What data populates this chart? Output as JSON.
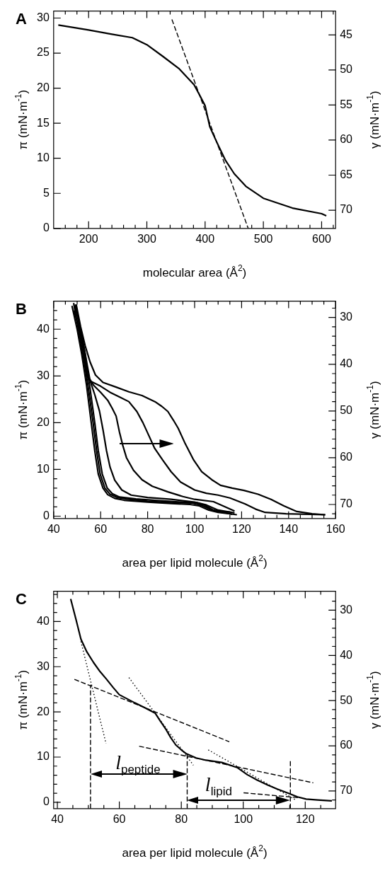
{
  "chart_data": [
    {
      "type": "line",
      "title": "A",
      "xlabel": "molecular area (Å$^{2}$)",
      "ylabel": "π (mN·m$^{-1}$)",
      "y2label": "γ (mN·m$^{-1}$)",
      "xlim": [
        140,
        624
      ],
      "ylim": [
        0,
        31
      ],
      "y2lim": [
        72.6,
        41.6
      ],
      "xticks": [
        {
          "value": 160,
          "label": null
        },
        {
          "value": 180,
          "label": null
        },
        200,
        {
          "value": 220,
          "label": null
        },
        {
          "value": 240,
          "label": null
        },
        {
          "value": 260,
          "label": null
        },
        {
          "value": 280,
          "label": null
        },
        300,
        {
          "value": 320,
          "label": null
        },
        {
          "value": 340,
          "label": null
        },
        {
          "value": 360,
          "label": null
        },
        {
          "value": 380,
          "label": null
        },
        400,
        {
          "value": 420,
          "label": null
        },
        {
          "value": 440,
          "label": null
        },
        {
          "value": 460,
          "label": null
        },
        {
          "value": 480,
          "label": null
        },
        500,
        {
          "value": 520,
          "label": null
        },
        {
          "value": 540,
          "label": null
        },
        {
          "value": 560,
          "label": null
        },
        {
          "value": 580,
          "label": null
        },
        600,
        {
          "value": 620,
          "label": null
        }
      ],
      "yticks": [
        0,
        5,
        10,
        15,
        20,
        25,
        30
      ],
      "y2ticks": [
        45,
        50,
        55,
        60,
        65,
        70
      ],
      "series": [
        {
          "color": "#000000",
          "line_style": "solid",
          "x": [
            148,
            200,
            240,
            275,
            300,
            328,
            355,
            381,
            390,
            400,
            408,
            420,
            435,
            450,
            470,
            500,
            550,
            600,
            608
          ],
          "values": [
            29.0,
            28.3,
            27.7,
            27.2,
            26.2,
            24.5,
            22.8,
            20.5,
            19.1,
            17.5,
            14.5,
            12.3,
            9.7,
            7.8,
            6.0,
            4.3,
            2.9,
            2.1,
            1.8
          ]
        },
        {
          "color": "#000000",
          "line_style": "dashed",
          "x": [
            343,
            474
          ],
          "values": [
            29.8,
            0
          ]
        }
      ]
    },
    {
      "type": "line",
      "title": "B",
      "xlabel": "area per lipid molecule (Å$^{2}$)",
      "ylabel": "π (mN·m$^{-1}$)",
      "y2label": "γ (mN·m$^{-1}$)",
      "xlim": [
        40,
        160
      ],
      "ylim": [
        -0.5,
        46
      ],
      "y2lim": [
        73,
        26.5
      ],
      "xticks": [
        40,
        {
          "value": 45,
          "label": null
        },
        {
          "value": 50,
          "label": null
        },
        {
          "value": 55,
          "label": null
        },
        60,
        {
          "value": 65,
          "label": null
        },
        {
          "value": 70,
          "label": null
        },
        {
          "value": 75,
          "label": null
        },
        80,
        {
          "value": 85,
          "label": null
        },
        {
          "value": 90,
          "label": null
        },
        {
          "value": 95,
          "label": null
        },
        100,
        {
          "value": 105,
          "label": null
        },
        {
          "value": 110,
          "label": null
        },
        {
          "value": 115,
          "label": null
        },
        120,
        {
          "value": 125,
          "label": null
        },
        {
          "value": 130,
          "label": null
        },
        {
          "value": 135,
          "label": null
        },
        140,
        {
          "value": 145,
          "label": null
        },
        {
          "value": 150,
          "label": null
        },
        {
          "value": 155,
          "label": null
        },
        160
      ],
      "yticks": [
        0,
        {
          "value": 2,
          "label": null
        },
        {
          "value": 4,
          "label": null
        },
        {
          "value": 6,
          "label": null
        },
        {
          "value": 8,
          "label": null
        },
        10,
        {
          "value": 12,
          "label": null
        },
        {
          "value": 14,
          "label": null
        },
        {
          "value": 16,
          "label": null
        },
        {
          "value": 18,
          "label": null
        },
        20,
        {
          "value": 22,
          "label": null
        },
        {
          "value": 24,
          "label": null
        },
        {
          "value": 26,
          "label": null
        },
        {
          "value": 28,
          "label": null
        },
        30,
        {
          "value": 32,
          "label": null
        },
        {
          "value": 34,
          "label": null
        },
        {
          "value": 36,
          "label": null
        },
        {
          "value": 38,
          "label": null
        },
        40,
        {
          "value": 42,
          "label": null
        },
        {
          "value": 44,
          "label": null
        }
      ],
      "y2ticks": [
        {
          "value": 28,
          "label": null
        },
        30,
        {
          "value": 32,
          "label": null
        },
        {
          "value": 34,
          "label": null
        },
        {
          "value": 36,
          "label": null
        },
        {
          "value": 38,
          "label": null
        },
        40,
        {
          "value": 42,
          "label": null
        },
        {
          "value": 44,
          "label": null
        },
        {
          "value": 46,
          "label": null
        },
        {
          "value": 48,
          "label": null
        },
        50,
        {
          "value": 52,
          "label": null
        },
        {
          "value": 54,
          "label": null
        },
        {
          "value": 56,
          "label": null
        },
        {
          "value": 58,
          "label": null
        },
        60,
        {
          "value": 62,
          "label": null
        },
        {
          "value": 64,
          "label": null
        },
        {
          "value": 66,
          "label": null
        },
        {
          "value": 68,
          "label": null
        },
        70,
        {
          "value": 72,
          "label": null
        }
      ],
      "series": [
        {
          "color": "#000000",
          "line_style": "solid",
          "x": [
            47.8,
            50,
            52,
            54,
            56,
            57.5,
            59,
            61,
            63,
            66,
            70,
            80,
            90,
            98,
            102,
            106,
            110,
            118
          ],
          "values": [
            45,
            40,
            34.5,
            28,
            20,
            14,
            9,
            6,
            4.6,
            3.8,
            3.4,
            3.0,
            2.7,
            2.5,
            2.2,
            1.3,
            0.8,
            0.3
          ]
        },
        {
          "color": "#000000",
          "line_style": "solid",
          "x": [
            48.5,
            50.5,
            52.5,
            54.6,
            56.8,
            58.3,
            59.8,
            61.8,
            64,
            67,
            72,
            80,
            90,
            99,
            103,
            107,
            111,
            115
          ],
          "values": [
            45.6,
            40,
            34.5,
            28,
            20,
            14,
            9,
            6,
            4.7,
            4,
            3.6,
            3.2,
            2.9,
            2.8,
            2.3,
            1.4,
            0.9,
            0.9
          ]
        },
        {
          "color": "#000000",
          "line_style": "solid",
          "x": [
            48.6,
            51,
            53,
            55.3,
            57.5,
            59,
            60.7,
            62.8,
            65,
            68,
            75,
            85,
            95,
            101,
            105,
            110,
            117
          ],
          "values": [
            44,
            40,
            34.5,
            28,
            20,
            14,
            9,
            6,
            4.8,
            4.1,
            3.7,
            3.3,
            3.0,
            2.9,
            2.4,
            1.3,
            0.7
          ]
        },
        {
          "color": "#000000",
          "line_style": "solid",
          "x": [
            49.2,
            51.3,
            53.5,
            55.5,
            57.5,
            59.5,
            61,
            62.5,
            64,
            66,
            69,
            73,
            80,
            90,
            100,
            104,
            108,
            116
          ],
          "values": [
            45.3,
            40,
            34.5,
            29,
            26,
            22.5,
            18.5,
            14,
            10.5,
            7.7,
            5.6,
            4.5,
            4,
            3.6,
            3.0,
            2.4,
            1.3,
            0.4
          ]
        },
        {
          "color": "#000000",
          "line_style": "solid",
          "x": [
            49,
            51.5,
            53.5,
            54.5,
            57,
            60,
            63,
            65,
            66.6,
            68,
            69.5,
            71,
            74,
            77.6,
            82,
            88.6,
            95,
            100,
            108,
            117
          ],
          "values": [
            45,
            40,
            34.5,
            30,
            28,
            26.5,
            24.8,
            23,
            21.4,
            18,
            15,
            12.5,
            9.8,
            7.8,
            6.4,
            5.2,
            4.2,
            3.6,
            3.1,
            1.1
          ]
        },
        {
          "color": "#000000",
          "line_style": "solid",
          "x": [
            49.3,
            51.5,
            53,
            54,
            56,
            60,
            64,
            68,
            72,
            75.4,
            78,
            80,
            83,
            86.4,
            90,
            94,
            100,
            105,
            110,
            115,
            121.5,
            126,
            130,
            139,
            155.6
          ],
          "values": [
            45,
            40,
            35,
            30,
            28.8,
            27.8,
            26.5,
            25.5,
            24.5,
            22.4,
            20,
            17.8,
            14.5,
            12,
            9.5,
            7.3,
            5.6,
            4.9,
            4.5,
            3.9,
            2.6,
            1.5,
            0.8,
            0.5,
            0.3
          ]
        },
        {
          "color": "#000000",
          "line_style": "solid",
          "x": [
            49.6,
            51.5,
            53.4,
            55.5,
            57.8,
            61,
            66.6,
            72,
            77.6,
            83.1,
            86,
            88.6,
            91,
            93,
            96,
            99.6,
            103,
            107.3,
            111,
            116,
            121,
            127,
            132.5,
            138,
            143.5,
            150,
            155.6
          ],
          "values": [
            45.3,
            40.5,
            36.5,
            33,
            30.2,
            28.6,
            27.6,
            26.6,
            25.8,
            24.5,
            23.5,
            22.4,
            20.5,
            18.8,
            15.5,
            12,
            9.5,
            7.8,
            6.6,
            6.0,
            5.5,
            4.7,
            3.6,
            2.2,
            1.0,
            0.5,
            0.3
          ]
        }
      ]
    },
    {
      "type": "line",
      "title": "C",
      "xlabel": "area per lipid molecule (Å$^{2}$)",
      "ylabel": "π (mN·m$^{-1}$)",
      "y2label": "γ (mN·m$^{-1}$)",
      "xlim": [
        38.8,
        129.8
      ],
      "ylim": [
        -1.4,
        46.7
      ],
      "y2lim": [
        73.9,
        25.8
      ],
      "xticks": [
        40,
        {
          "value": 45,
          "label": null
        },
        {
          "value": 50,
          "label": null
        },
        {
          "value": 55,
          "label": null
        },
        60,
        {
          "value": 65,
          "label": null
        },
        {
          "value": 70,
          "label": null
        },
        {
          "value": 75,
          "label": null
        },
        80,
        {
          "value": 85,
          "label": null
        },
        {
          "value": 90,
          "label": null
        },
        {
          "value": 95,
          "label": null
        },
        100,
        {
          "value": 105,
          "label": null
        },
        {
          "value": 110,
          "label": null
        },
        {
          "value": 115,
          "label": null
        },
        120,
        {
          "value": 125,
          "label": null
        }
      ],
      "yticks": [
        0,
        {
          "value": 2,
          "label": null
        },
        {
          "value": 4,
          "label": null
        },
        {
          "value": 6,
          "label": null
        },
        {
          "value": 8,
          "label": null
        },
        10,
        {
          "value": 12,
          "label": null
        },
        {
          "value": 14,
          "label": null
        },
        {
          "value": 16,
          "label": null
        },
        {
          "value": 18,
          "label": null
        },
        20,
        {
          "value": 22,
          "label": null
        },
        {
          "value": 24,
          "label": null
        },
        {
          "value": 26,
          "label": null
        },
        {
          "value": 28,
          "label": null
        },
        30,
        {
          "value": 32,
          "label": null
        },
        {
          "value": 34,
          "label": null
        },
        {
          "value": 36,
          "label": null
        },
        {
          "value": 38,
          "label": null
        },
        40,
        {
          "value": 42,
          "label": null
        },
        {
          "value": 44,
          "label": null
        },
        {
          "value": 46,
          "label": null
        }
      ],
      "y2ticks": [
        {
          "value": 28,
          "label": null
        },
        30,
        {
          "value": 32,
          "label": null
        },
        {
          "value": 34,
          "label": null
        },
        {
          "value": 36,
          "label": null
        },
        {
          "value": 38,
          "label": null
        },
        40,
        {
          "value": 42,
          "label": null
        },
        {
          "value": 44,
          "label": null
        },
        {
          "value": 46,
          "label": null
        },
        {
          "value": 48,
          "label": null
        },
        50,
        {
          "value": 52,
          "label": null
        },
        {
          "value": 54,
          "label": null
        },
        {
          "value": 56,
          "label": null
        },
        {
          "value": 58,
          "label": null
        },
        60,
        {
          "value": 62,
          "label": null
        },
        {
          "value": 64,
          "label": null
        },
        {
          "value": 66,
          "label": null
        },
        {
          "value": 68,
          "label": null
        },
        70,
        {
          "value": 72,
          "label": null
        }
      ],
      "annotations": [
        "l$_{peptide}$",
        "l$_{lipid}$"
      ],
      "series": [
        {
          "color": "#000000",
          "line_style": "solid",
          "x": [
            44.3,
            46,
            47.6,
            49.5,
            51.7,
            53.8,
            55.9,
            58,
            60,
            62.5,
            65,
            68,
            71.6,
            73,
            74.9,
            76.5,
            78.2,
            80,
            81.5,
            84.8,
            88,
            93.1,
            98,
            101.3,
            104.5,
            107.9,
            111,
            114.5,
            117.5,
            120.3,
            124,
            128.6
          ],
          "values": [
            45,
            40.5,
            36.1,
            33.3,
            30.9,
            28.9,
            27.2,
            25.4,
            23.8,
            22.9,
            22,
            21,
            19.7,
            18.2,
            16.3,
            14.4,
            12.7,
            11.6,
            10.8,
            9.8,
            9.3,
            8.8,
            7.7,
            6.1,
            4.9,
            3.8,
            2.9,
            2.0,
            1.2,
            0.7,
            0.5,
            0.3
          ]
        },
        {
          "color": "#000000",
          "line_style": "dotted",
          "x": [
            47.6,
            55.7
          ],
          "values": [
            35.6,
            13.0
          ]
        },
        {
          "color": "#000000",
          "line_style": "dashed",
          "x": [
            45.5,
            95.5
          ],
          "values": [
            27.2,
            13.4
          ]
        },
        {
          "color": "#000000",
          "line_style": "dotted",
          "x": [
            63.1,
            83.9
          ],
          "values": [
            27.6,
            8.2
          ]
        },
        {
          "color": "#000000",
          "line_style": "dashed",
          "x": [
            66.4,
            122.6
          ],
          "values": [
            12.4,
            4.3
          ]
        },
        {
          "color": "#000000",
          "line_style": "dotted",
          "x": [
            88.7,
            117.2
          ],
          "values": [
            11.6,
            0.4
          ]
        },
        {
          "color": "#000000",
          "line_style": "dashed",
          "x": [
            100.1,
            118.3
          ],
          "values": [
            2.1,
            1.0
          ]
        },
        {
          "color": "#000000",
          "line_style": "dashed",
          "x": [
            50.7,
            50.7
          ],
          "values": [
            -1.4,
            26
          ]
        },
        {
          "color": "#000000",
          "line_style": "dashed",
          "x": [
            81.9,
            81.9
          ],
          "values": [
            -1.4,
            10.5
          ]
        },
        {
          "color": "#000000",
          "line_style": "dashed",
          "x": [
            115.2,
            115.2
          ],
          "values": [
            -1.4,
            9.5
          ]
        }
      ]
    }
  ]
}
